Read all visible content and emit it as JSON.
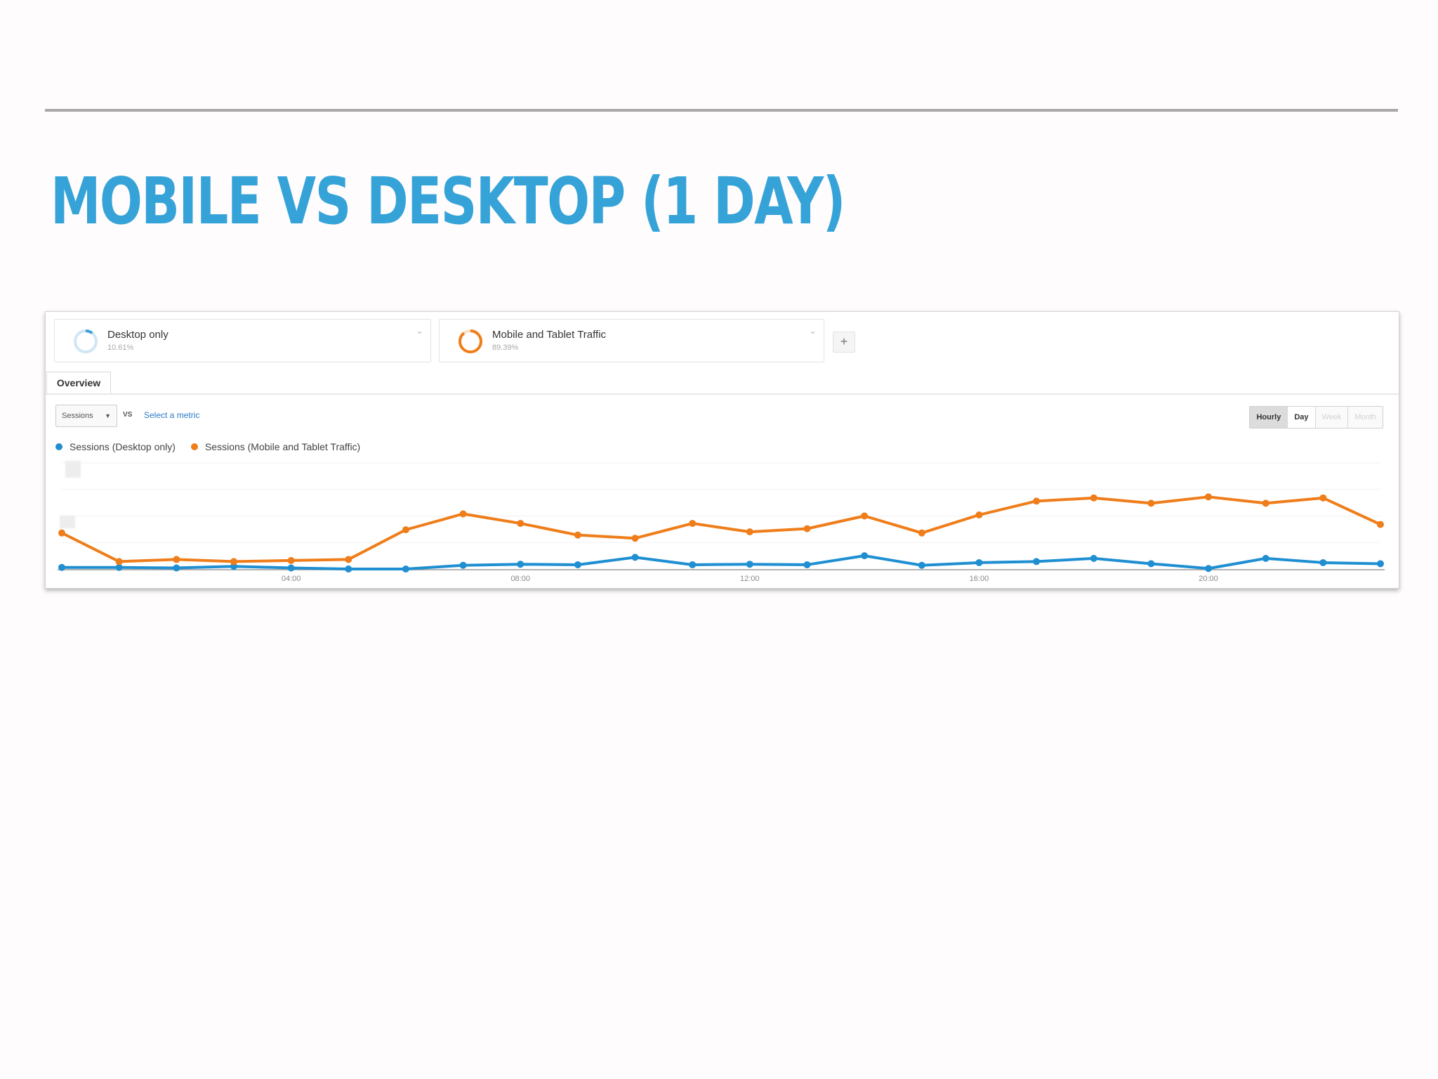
{
  "slide": {
    "title": "MOBILE VS DESKTOP (1 DAY)"
  },
  "segments": [
    {
      "name": "Desktop only",
      "percent": "10.61%",
      "color": "#3fa0d9",
      "share": 0.1061
    },
    {
      "name": "Mobile and Tablet Traffic",
      "percent": "89.39%",
      "color": "#ef7d1a",
      "share": 0.8939
    }
  ],
  "add_segment_label": "+",
  "tabs": [
    {
      "label": "Overview"
    }
  ],
  "controls": {
    "metric": "Sessions",
    "vs": "VS",
    "select_metric": "Select a metric",
    "granularity": [
      "Hourly",
      "Day",
      "Week",
      "Month"
    ],
    "active_granularity": "Hourly"
  },
  "chart_data": {
    "type": "line",
    "x": [
      0,
      1,
      2,
      3,
      4,
      5,
      6,
      7,
      8,
      9,
      10,
      11,
      12,
      13,
      14,
      15,
      16,
      17,
      18,
      19,
      20,
      21,
      22,
      23
    ],
    "x_tick_labels": [
      "04:00",
      "08:00",
      "12:00",
      "16:00",
      "20:00"
    ],
    "x_tick_values": [
      4,
      8,
      12,
      16,
      20
    ],
    "ylim": [
      0,
      100
    ],
    "series": [
      {
        "name": "Sessions (Desktop only)",
        "color": "#1f8fd2",
        "values": [
          1.5,
          1.5,
          1,
          2.5,
          1,
          0,
          0,
          3.5,
          4.5,
          4,
          11,
          4,
          4.5,
          4,
          12.5,
          3.5,
          6,
          7,
          10,
          5,
          0.5,
          10,
          6,
          5
        ]
      },
      {
        "name": "Sessions (Mobile and Tablet Traffic)",
        "color": "#ef7d1a",
        "values": [
          34,
          7,
          9,
          7,
          8,
          9,
          37,
          52,
          43,
          32,
          29,
          43,
          35,
          38,
          50,
          34,
          51,
          64,
          67,
          62,
          68,
          62,
          67,
          42
        ]
      }
    ]
  }
}
